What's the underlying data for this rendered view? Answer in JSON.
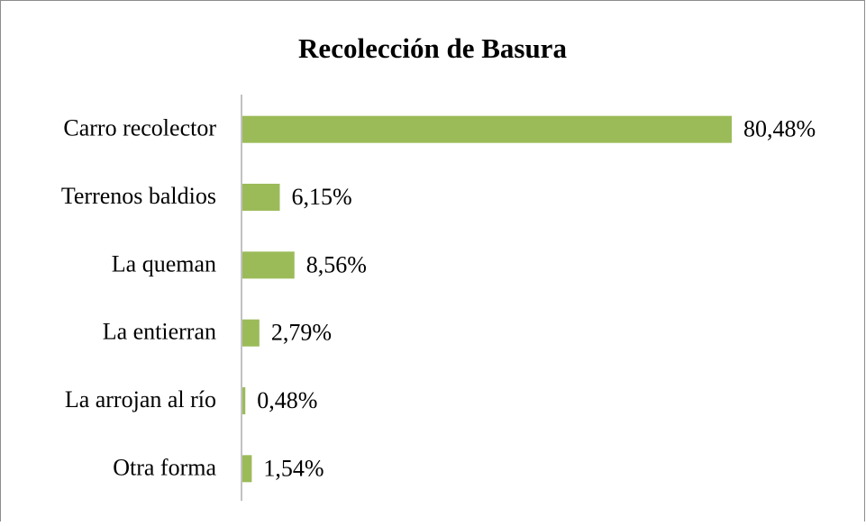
{
  "chart_data": {
    "type": "bar",
    "orientation": "horizontal",
    "title": "Recolección de Basura",
    "categories": [
      "Carro recolector",
      "Terrenos baldios",
      "La queman",
      "La entierran",
      "La arrojan al río",
      "Otra forma"
    ],
    "values": [
      80.48,
      6.15,
      8.56,
      2.79,
      0.48,
      1.54
    ],
    "value_labels": [
      "80,48%",
      "6,15%",
      "8,56%",
      "2,79%",
      "0,48%",
      "1,54%"
    ],
    "color": "#9bbb59"
  }
}
